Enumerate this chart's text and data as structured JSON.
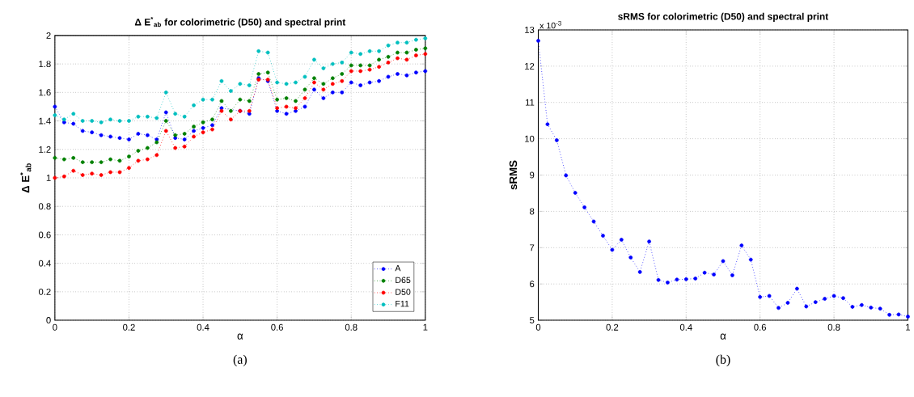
{
  "chart_data": [
    {
      "type": "line",
      "title": "Δ E$^{*}$$_{ab}$ for colorimetric (D50) and spectral print",
      "xlabel": "α",
      "ylabel": "Δ E$^{*}$$_{ab}$",
      "x": [
        0,
        0.025,
        0.05,
        0.075,
        0.1,
        0.125,
        0.15,
        0.175,
        0.2,
        0.225,
        0.25,
        0.275,
        0.3,
        0.325,
        0.35,
        0.375,
        0.4,
        0.425,
        0.45,
        0.475,
        0.5,
        0.525,
        0.55,
        0.575,
        0.6,
        0.625,
        0.65,
        0.675,
        0.7,
        0.725,
        0.75,
        0.775,
        0.8,
        0.825,
        0.85,
        0.875,
        0.9,
        0.925,
        0.95,
        0.975,
        1
      ],
      "series": [
        {
          "name": "A",
          "color": "#0000ff",
          "values": [
            1.5,
            1.39,
            1.38,
            1.33,
            1.32,
            1.3,
            1.29,
            1.28,
            1.27,
            1.31,
            1.3,
            1.27,
            1.46,
            1.28,
            1.27,
            1.33,
            1.35,
            1.37,
            1.49,
            null,
            1.47,
            1.45,
            1.7,
            1.68,
            1.47,
            1.45,
            1.47,
            1.5,
            1.62,
            1.56,
            1.6,
            1.6,
            1.67,
            1.65,
            1.67,
            1.68,
            1.71,
            1.73,
            1.72,
            1.74,
            1.75
          ]
        },
        {
          "name": "D65",
          "color": "#008000",
          "values": [
            1.14,
            1.13,
            1.14,
            1.11,
            1.11,
            1.11,
            1.13,
            1.12,
            1.15,
            1.19,
            1.21,
            1.25,
            1.4,
            1.3,
            1.31,
            1.36,
            1.39,
            1.41,
            1.54,
            1.47,
            1.55,
            1.54,
            1.73,
            1.74,
            1.55,
            1.56,
            1.54,
            1.62,
            1.7,
            1.66,
            1.7,
            1.73,
            1.79,
            1.79,
            1.79,
            1.83,
            1.85,
            1.88,
            1.88,
            1.9,
            1.91
          ]
        },
        {
          "name": "D50",
          "color": "#ff0000",
          "values": [
            1.0,
            1.01,
            1.05,
            1.02,
            1.03,
            1.02,
            1.04,
            1.04,
            1.07,
            1.12,
            1.13,
            1.16,
            1.33,
            1.21,
            1.22,
            1.29,
            1.32,
            1.34,
            1.47,
            1.41,
            1.47,
            1.47,
            1.69,
            1.69,
            1.49,
            1.5,
            1.49,
            1.56,
            1.67,
            1.62,
            1.66,
            1.68,
            1.75,
            1.75,
            1.76,
            1.78,
            1.81,
            1.84,
            1.83,
            1.86,
            1.87
          ]
        },
        {
          "name": "F11",
          "color": "#00bfbf",
          "values": [
            1.44,
            1.41,
            1.45,
            1.4,
            1.4,
            1.39,
            1.41,
            1.4,
            1.4,
            1.43,
            1.43,
            1.42,
            1.6,
            1.45,
            1.43,
            1.51,
            1.55,
            1.55,
            1.68,
            1.61,
            1.66,
            1.65,
            1.89,
            1.88,
            1.67,
            1.66,
            1.67,
            1.71,
            1.83,
            1.77,
            1.8,
            1.81,
            1.88,
            1.87,
            1.89,
            1.89,
            1.93,
            1.95,
            1.95,
            1.97,
            1.98
          ]
        }
      ],
      "xlim": [
        0,
        1
      ],
      "xticks": [
        0,
        0.2,
        0.4,
        0.6,
        0.8,
        1
      ],
      "ylim": [
        0,
        2
      ],
      "yticks": [
        0,
        0.2,
        0.4,
        0.6,
        0.8,
        1,
        1.2,
        1.4,
        1.6,
        1.8,
        2
      ],
      "grid": true,
      "legend": "bottom right",
      "marker": "circle",
      "line_style": "dotted",
      "annotations": [
        "(a)"
      ]
    },
    {
      "type": "line",
      "title": "sRMS for colorimetric (D50) and spectral print",
      "xlabel": "α",
      "ylabel": "sRMS",
      "x": [
        0,
        0.025,
        0.05,
        0.075,
        0.1,
        0.125,
        0.15,
        0.175,
        0.2,
        0.225,
        0.25,
        0.275,
        0.3,
        0.325,
        0.35,
        0.375,
        0.4,
        0.425,
        0.45,
        0.475,
        0.5,
        0.525,
        0.55,
        0.575,
        0.6,
        0.625,
        0.65,
        0.675,
        0.7,
        0.725,
        0.75,
        0.775,
        0.8,
        0.825,
        0.85,
        0.875,
        0.9,
        0.925,
        0.95,
        0.975,
        1
      ],
      "series": [
        {
          "color": "#0000ff",
          "values": [
            12.7,
            10.4,
            9.96,
            8.99,
            8.51,
            8.11,
            7.72,
            7.33,
            6.94,
            7.22,
            6.73,
            6.33,
            7.17,
            6.11,
            6.04,
            6.12,
            6.13,
            6.15,
            6.31,
            6.26,
            6.63,
            6.24,
            7.06,
            6.67,
            5.64,
            5.67,
            5.34,
            5.48,
            5.87,
            5.38,
            5.5,
            5.59,
            5.67,
            5.61,
            5.37,
            5.42,
            5.35,
            5.32,
            5.15,
            5.16,
            5.1
          ]
        }
      ],
      "xlim": [
        0,
        1
      ],
      "xticks": [
        0,
        0.2,
        0.4,
        0.6,
        0.8,
        1
      ],
      "ylim": [
        5,
        13
      ],
      "yticks": [
        5,
        6,
        7,
        8,
        9,
        10,
        11,
        12,
        13
      ],
      "grid": true,
      "marker": "circle",
      "line_style": "dotted",
      "annotations": [
        "x 10$^{-3}$",
        "(b)"
      ]
    }
  ]
}
